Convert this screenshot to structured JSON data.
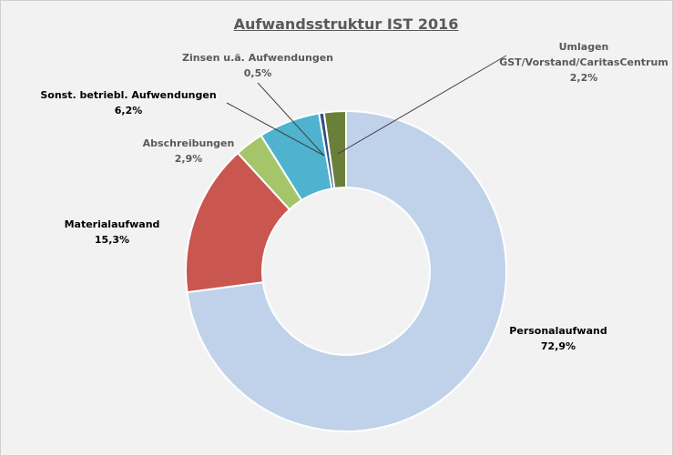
{
  "chart_data": {
    "type": "donut",
    "title": "Aufwandsstruktur IST 2016",
    "categories": [
      "Personalaufwand",
      "Materialaufwand",
      "Abschreibungen",
      "Sonst. betriebl. Aufwendungen",
      "Zinsen u.ä. Aufwendungen",
      "Umlagen\nGST/Vorstand/CaritasCentrum"
    ],
    "values": [
      72.9,
      15.3,
      2.9,
      6.2,
      0.5,
      2.2
    ],
    "value_labels": [
      "72,9%",
      "15,3%",
      "2,9%",
      "6,2%",
      "0,5%",
      "2,2%"
    ],
    "colors": [
      "#c0d2ea",
      "#c9564f",
      "#a5c56a",
      "#4fb3cf",
      "#2e4f87",
      "#6a7f3a"
    ]
  }
}
